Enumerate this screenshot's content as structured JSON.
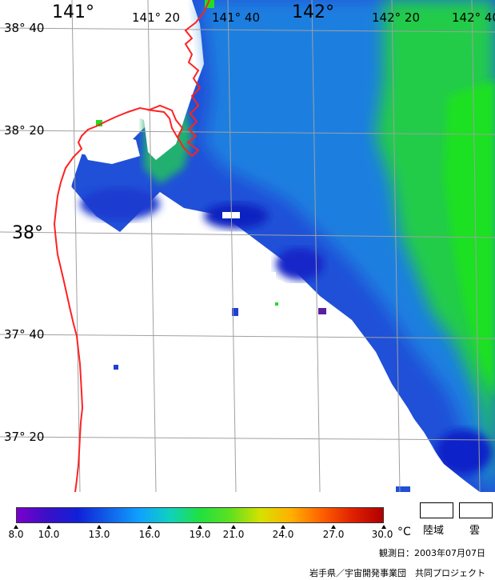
{
  "map": {
    "lon_labels": [
      {
        "text": "141°",
        "size": "big"
      },
      {
        "text": "141° 20",
        "size": "small"
      },
      {
        "text": "141° 40",
        "size": "small"
      },
      {
        "text": "142°",
        "size": "big"
      },
      {
        "text": "142° 20",
        "size": "small"
      },
      {
        "text": "142° 40",
        "size": "small"
      }
    ],
    "lat_labels": [
      {
        "text": "38° 40",
        "size": "small"
      },
      {
        "text": "38° 20",
        "size": "small"
      },
      {
        "text": "38°",
        "size": "big"
      },
      {
        "text": "37° 40",
        "size": "small"
      },
      {
        "text": "37° 20",
        "size": "small"
      }
    ],
    "colors": {
      "cold": "#1d2fd0",
      "mid": "#1e7fe0",
      "warm": "#22cc55",
      "warmer": "#1fe21f",
      "coast_line": "#ff2222",
      "grid": "#a0a0a0",
      "land": "#ffffff",
      "cloud": "#ffffff"
    }
  },
  "legend": {
    "scale_ticks": [
      "8.0",
      "10.0",
      "13.0",
      "16.0",
      "19.0",
      "21.0",
      "24.0",
      "27.0",
      "30.0"
    ],
    "unit": "°C",
    "land_label": "陸域",
    "cloud_label": "雲",
    "gradient_colors": [
      "#7a00cc",
      "#3a10c8",
      "#1020d8",
      "#1060e8",
      "#10a0ff",
      "#10d0c0",
      "#20e040",
      "#60e020",
      "#d8e000",
      "#ffb000",
      "#ff6000",
      "#e02000",
      "#b00000"
    ]
  },
  "footer": {
    "observation_date": "観測日：2003年07月07日",
    "credit": "岩手県／宇宙開発事業団　共同プロジェクト"
  }
}
